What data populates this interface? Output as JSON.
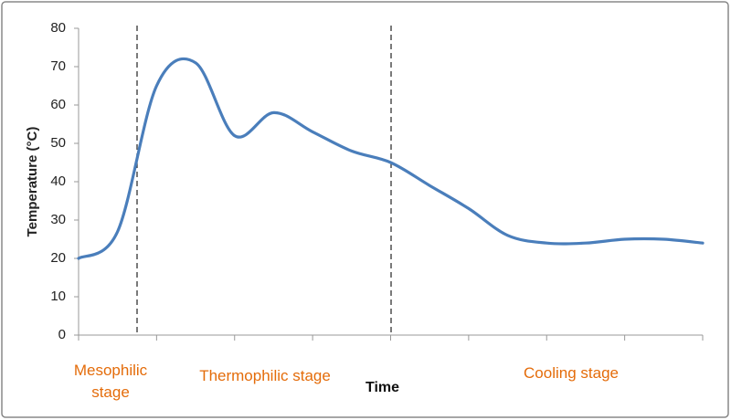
{
  "chart_data": {
    "type": "line",
    "y_label": "Temperature (°C)",
    "x_label": "Time",
    "stage_labels": [
      "Mesophilic stage",
      "Thermophilic  stage",
      "Cooling stage"
    ],
    "categories": [
      null,
      null,
      null,
      null,
      null,
      null,
      null,
      null,
      null,
      null,
      null,
      null,
      null,
      null,
      null,
      null,
      null
    ],
    "series": [
      {
        "color": "#4a7ebb",
        "values": [
          20,
          27,
          65,
          71,
          52,
          58,
          53,
          48,
          45,
          39,
          33,
          26,
          24,
          24,
          25,
          25,
          24
        ]
      }
    ],
    "ylim": [
      0,
      80
    ],
    "yticks": [
      0,
      10,
      20,
      30,
      40,
      50,
      60,
      70,
      80
    ],
    "grid": false
  }
}
